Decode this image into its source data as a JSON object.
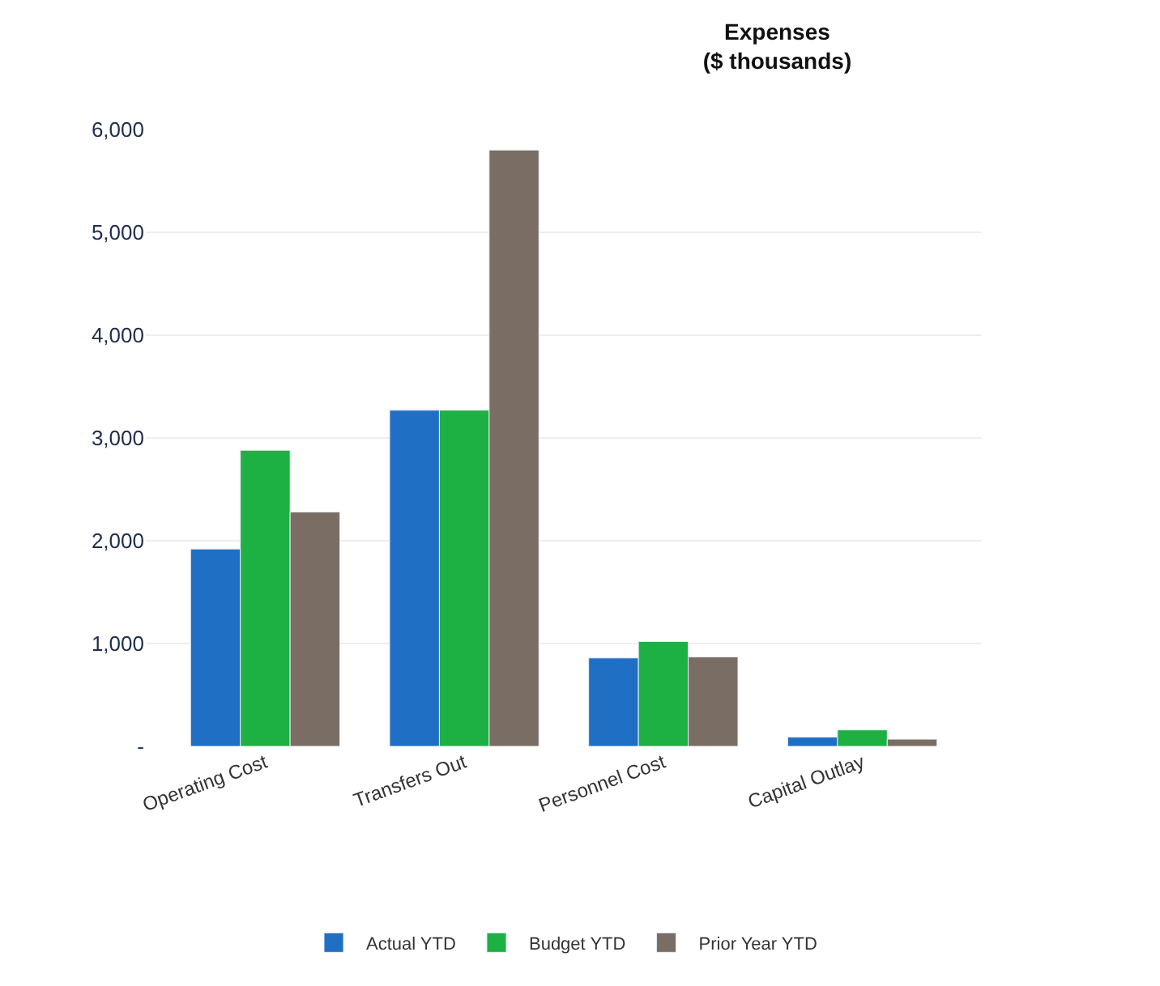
{
  "chart_data": {
    "type": "bar",
    "title": "Expenses\n($ thousands)",
    "categories": [
      "Operating Cost",
      "Transfers Out",
      "Personnel Cost",
      "Capital Outlay"
    ],
    "series": [
      {
        "name": "Actual YTD",
        "color": "#1f6fc5",
        "values": [
          1920,
          3270,
          860,
          90
        ]
      },
      {
        "name": "Budget YTD",
        "color": "#1db043",
        "values": [
          2880,
          3270,
          1020,
          160
        ]
      },
      {
        "name": "Prior Year YTD",
        "color": "#7a6e64",
        "values": [
          2280,
          5800,
          870,
          70
        ]
      }
    ],
    "ylim": [
      0,
      6000
    ],
    "yticks": [
      {
        "value": 0,
        "label": "-"
      },
      {
        "value": 1000,
        "label": "1,000"
      },
      {
        "value": 2000,
        "label": "2,000"
      },
      {
        "value": 3000,
        "label": "3,000"
      },
      {
        "value": 4000,
        "label": "4,000"
      },
      {
        "value": 5000,
        "label": "5,000"
      },
      {
        "value": 6000,
        "label": "6,000"
      }
    ],
    "grid": "y",
    "legend": "bottom"
  }
}
